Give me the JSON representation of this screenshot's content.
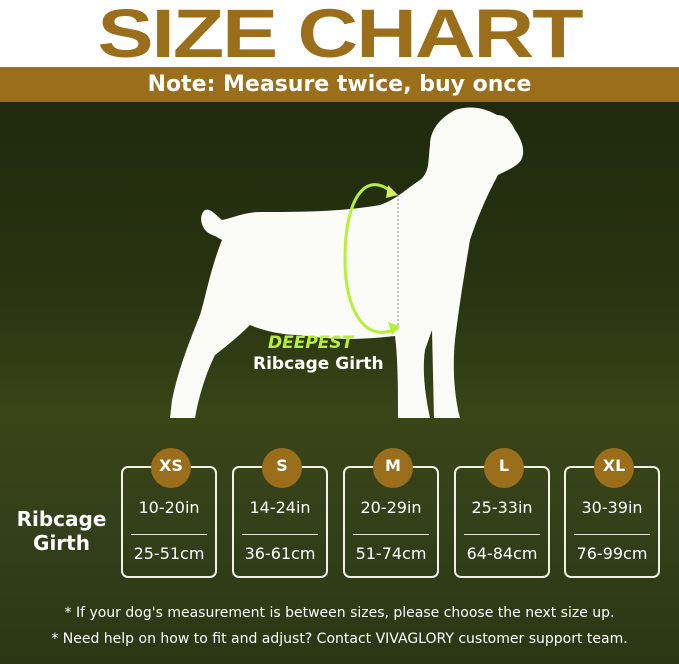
{
  "title": "SIZE CHART",
  "subtitle": "Note: Measure twice, buy once",
  "diagram": {
    "highlight": "DEEPEST",
    "label": "Ribcage Girth",
    "arrow_color": "#b6f03a"
  },
  "row_label": "Ribcage Girth",
  "sizes": [
    {
      "size": "XS",
      "in": "10-20in",
      "cm": "25-51cm"
    },
    {
      "size": "S",
      "in": "14-24in",
      "cm": "36-61cm"
    },
    {
      "size": "M",
      "in": "20-29in",
      "cm": "51-74cm"
    },
    {
      "size": "L",
      "in": "25-33in",
      "cm": "64-84cm"
    },
    {
      "size": "XL",
      "in": "30-39in",
      "cm": "76-99cm"
    }
  ],
  "notes": [
    "*   If your dog's measurement is between sizes, please choose the next size up.",
    "* Need help on how to fit and adjust? Contact VIVAGLORY customer support team."
  ],
  "colors": {
    "brand": "#9a6e1a",
    "background": "#2a3411"
  }
}
